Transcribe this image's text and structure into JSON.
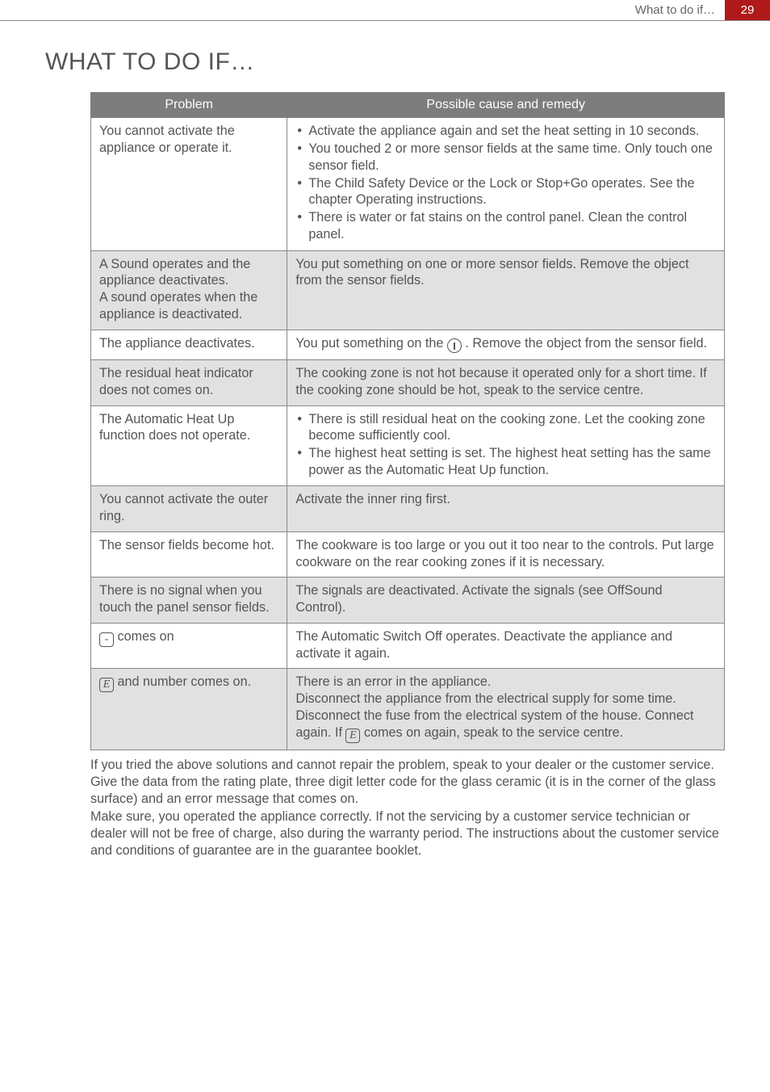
{
  "header": {
    "running_title": "What to do if…",
    "page_number": "29"
  },
  "title": "WHAT TO DO IF…",
  "table": {
    "header_problem": "Problem",
    "header_remedy": "Possible cause and remedy",
    "col_widths": [
      "31%",
      "69%"
    ],
    "border_color": "#888888",
    "header_bg": "#7d7d7d",
    "header_fg": "#ffffff",
    "zebra_bg": "#e1e1e1",
    "fontsize": 16.2,
    "rows": [
      {
        "problem": "You cannot activate the appliance or operate it.",
        "remedy_list": [
          "Activate the appliance again and set the heat setting in 10 seconds.",
          "You touched 2 or more sensor fields at the same time. Only touch one sensor field.",
          "The Child Safety Device or the Lock or Stop+Go operates. See the chapter Operating instructions.",
          "There is water or fat stains on the control panel. Clean the control panel."
        ]
      },
      {
        "problem": "A Sound operates and the appliance deactivates.\nA sound operates when the appliance is deactivated.",
        "remedy_text": "You put something on one or more sensor fields. Remove the object from the sensor fields."
      },
      {
        "problem": "The appliance deactivates.",
        "remedy_power": {
          "pre": "You put something on the ",
          "post": " . Remove the object from the sensor field."
        }
      },
      {
        "problem": "The residual heat indicator does not comes on.",
        "remedy_text": "The cooking zone is not hot because it operated only for a short time. If the cooking zone should be hot, speak to the service centre."
      },
      {
        "problem": "The Automatic Heat Up function does not operate.",
        "remedy_list": [
          "There is still residual heat on the cooking zone. Let the cooking zone become sufficiently cool.",
          "The highest heat setting is set. The highest heat setting has the same power as the Automatic Heat Up function."
        ]
      },
      {
        "problem": "You cannot activate the outer ring.",
        "remedy_text": "Activate the inner ring first."
      },
      {
        "problem": "The sensor fields become hot.",
        "remedy_text": "The cookware is too large or you out it too near to the controls. Put large cookware on the rear cooking zones if it is necessary."
      },
      {
        "problem": "There is no signal when you touch the panel sensor fields.",
        "remedy_text": "The signals are deactivated. Activate the signals (see OffSound Control)."
      },
      {
        "problem_sym": {
          "glyph": "-",
          "after": " comes on"
        },
        "remedy_text": "The Automatic Switch Off operates. Deactivate the appliance and activate it again."
      },
      {
        "problem_sym": {
          "glyph": "E",
          "after": " and number comes on."
        },
        "remedy_error": {
          "l1": "There is an error in the appliance.",
          "l2": "Disconnect the appliance from the electrical supply for some time. Disconnect the fuse from the electrical system of the house. Connect again. If ",
          "glyph": "E",
          "l3": " comes on again, speak to the service centre."
        }
      }
    ]
  },
  "closing": "If you tried the above solutions and cannot repair the problem, speak to your dealer or the customer service. Give the data from the rating plate, three digit letter code for the glass ceramic (it is in the corner of the glass surface) and an error message that comes on.\nMake sure, you operated the appliance correctly. If not the servicing by a customer service technician or dealer will not be free of charge, also during the warranty period. The instructions about the customer service and conditions of guarantee are in the guarantee booklet.",
  "colors": {
    "text": "#555555",
    "accent": "#b0191a",
    "rule": "#888888",
    "page_bg": "#ffffff"
  },
  "typography": {
    "body_fontsize": 16.2,
    "title_fontsize": 30,
    "header_fontsize": 15,
    "font_weight": 300
  }
}
